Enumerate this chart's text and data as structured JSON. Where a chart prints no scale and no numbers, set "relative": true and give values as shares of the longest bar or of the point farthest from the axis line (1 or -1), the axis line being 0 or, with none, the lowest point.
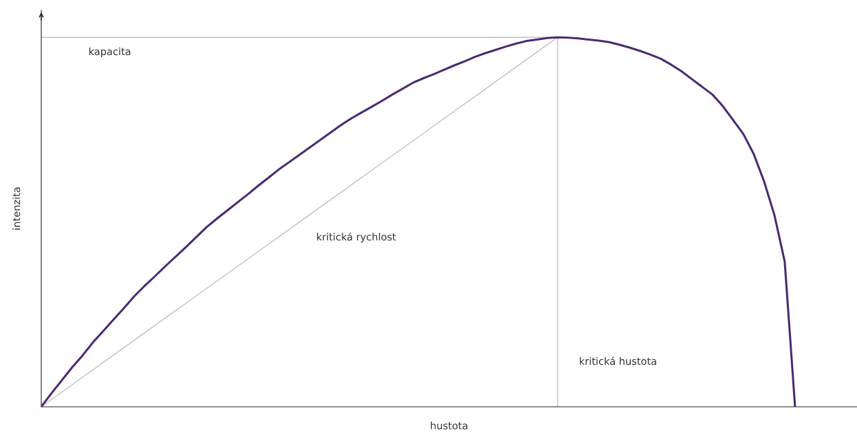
{
  "chart_data": {
    "type": "line",
    "relative": true,
    "xlabel": "hustota",
    "ylabel": "intenzita",
    "marker": "none",
    "line_style": "solid",
    "categories": [
      null,
      null,
      null,
      null,
      null,
      null,
      null,
      null,
      null,
      null,
      null,
      null,
      null,
      null,
      null,
      null,
      null,
      null,
      null,
      null,
      null,
      null,
      null,
      null,
      null,
      null,
      null,
      null,
      null,
      null,
      null,
      null,
      null,
      null,
      null,
      null,
      null,
      null,
      null,
      null,
      null,
      null,
      null,
      null,
      null,
      null,
      null,
      null,
      null,
      null,
      null,
      null,
      null,
      null,
      null,
      null,
      null,
      null,
      null,
      null,
      null,
      null,
      null,
      null,
      null,
      null,
      null,
      null,
      null,
      null,
      null,
      null,
      null,
      null,
      null,
      null,
      null,
      null,
      null,
      null
    ],
    "series": [
      {
        "color": "#4b2a72",
        "values": [
          0,
          0.037,
          0.072,
          0.107,
          0.139,
          0.174,
          0.205,
          0.236,
          0.267,
          0.299,
          0.327,
          0.353,
          0.38,
          0.406,
          0.432,
          0.459,
          0.486,
          0.509,
          0.531,
          0.553,
          0.575,
          0.598,
          0.62,
          0.642,
          0.662,
          0.682,
          0.702,
          0.722,
          0.742,
          0.762,
          0.78,
          0.796,
          0.812,
          0.828,
          0.845,
          0.861,
          0.877,
          0.889,
          0.9,
          0.912,
          0.924,
          0.935,
          0.947,
          0.957,
          0.966,
          0.975,
          0.983,
          0.99,
          0.994,
          0.998,
          1.0,
          0.999,
          0.997,
          0.994,
          0.991,
          0.987,
          0.98,
          0.972,
          0.963,
          0.953,
          0.942,
          0.926,
          0.908,
          0.887,
          0.866,
          0.845,
          0.814,
          0.776,
          0.738,
          0.684,
          0.61,
          0.519,
          0.393,
          0,
          null,
          null,
          null,
          null,
          null,
          null
        ]
      },
      {
        "color": "#c0c0c0",
        "values": [
          1,
          1,
          1,
          1,
          1,
          1,
          1,
          1,
          1,
          1,
          1,
          1,
          1,
          1,
          1,
          1,
          1,
          1,
          1,
          1,
          1,
          1,
          1,
          1,
          1,
          1,
          1,
          1,
          1,
          1,
          1,
          1,
          1,
          1,
          1,
          1,
          1,
          1,
          1,
          1,
          1,
          1,
          1,
          1,
          1,
          1,
          1,
          1,
          1,
          1,
          1,
          null,
          null,
          null,
          null,
          null,
          null,
          null,
          null,
          null,
          null,
          null,
          null,
          null,
          null,
          null,
          null,
          null,
          null,
          null,
          null,
          null,
          null,
          null,
          null,
          null,
          null,
          null,
          null,
          null
        ]
      },
      {
        "color": "#c0c0c0",
        "values": [
          0,
          0.02,
          0.04,
          0.06,
          0.08,
          0.1,
          0.12,
          0.14,
          0.16,
          0.18,
          0.2,
          0.22,
          0.24,
          0.26,
          0.28,
          0.3,
          0.32,
          0.34,
          0.36,
          0.38,
          0.4,
          0.42,
          0.44,
          0.46,
          0.48,
          0.5,
          0.52,
          0.54,
          0.56,
          0.58,
          0.6,
          0.62,
          0.64,
          0.66,
          0.68,
          0.7,
          0.72,
          0.74,
          0.76,
          0.78,
          0.8,
          0.82,
          0.84,
          0.86,
          0.88,
          0.9,
          0.92,
          0.94,
          0.96,
          0.98,
          1.0,
          null,
          null,
          null,
          null,
          null,
          null,
          null,
          null,
          null,
          null,
          null,
          null,
          null,
          null,
          null,
          null,
          null,
          null,
          null,
          null,
          null,
          null,
          null,
          null,
          null,
          null,
          null,
          null,
          null
        ]
      }
    ],
    "annotations": [
      "kapacita",
      "kritická rychlost",
      "kritická hustota"
    ]
  }
}
